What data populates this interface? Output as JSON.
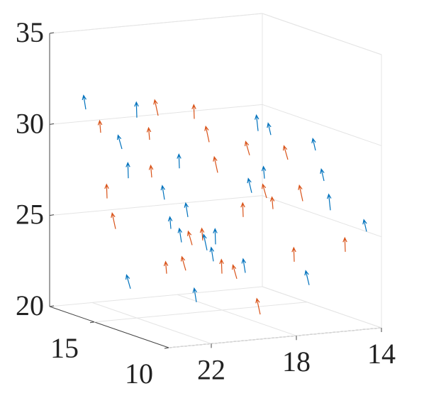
{
  "chart_data": {
    "type": "quiver3",
    "xlim": [
      10,
      18
    ],
    "ylim": [
      14,
      24
    ],
    "zlim": [
      20,
      35
    ],
    "xticks": [
      10,
      15
    ],
    "yticks": [
      14,
      18,
      22
    ],
    "zticks": [
      20,
      25,
      30,
      35
    ],
    "grid": true,
    "series": [
      {
        "color": "#0072bd",
        "x": [
          17,
          17,
          17,
          16,
          16,
          15,
          15,
          14,
          14,
          13,
          13,
          12,
          12,
          11,
          11,
          17,
          15,
          13,
          11,
          16,
          14,
          12,
          16,
          12
        ],
        "y": [
          23,
          21,
          19,
          22,
          18,
          20,
          16,
          23,
          17,
          21,
          15,
          19,
          15,
          22,
          16,
          17,
          22,
          18,
          14,
          20,
          19,
          16,
          15,
          22
        ],
        "z": [
          31,
          27,
          24,
          29,
          23,
          28,
          27,
          22,
          30,
          26,
          29,
          23,
          26,
          22,
          28,
          22,
          31,
          27,
          25,
          26,
          24,
          22,
          29,
          25
        ],
        "u": [
          0.1,
          0.1,
          0.2,
          0.1,
          0.0,
          0.1,
          0.2,
          0.1,
          0.0,
          0.1,
          0.2,
          0.1,
          0.0,
          0.1,
          0.2,
          0.1,
          0.1,
          0.0,
          0.2,
          0.1,
          0.1,
          0.0,
          0.2,
          0.1
        ],
        "v": [
          -0.2,
          -0.1,
          -0.2,
          -0.3,
          -0.2,
          -0.1,
          -0.2,
          -0.3,
          -0.1,
          -0.2,
          -0.3,
          -0.2,
          -0.1,
          -0.2,
          -0.3,
          -0.2,
          -0.1,
          -0.2,
          -0.3,
          -0.2,
          -0.1,
          -0.2,
          -0.3,
          -0.2
        ],
        "w": [
          1.0,
          1.1,
          0.9,
          1.0,
          1.1,
          1.0,
          0.9,
          1.0,
          1.1,
          1.0,
          0.9,
          1.0,
          1.1,
          1.0,
          0.9,
          1.0,
          1.1,
          1.0,
          0.9,
          1.0,
          1.1,
          1.0,
          0.9,
          1.0
        ]
      },
      {
        "color": "#d95319",
        "x": [
          17,
          16,
          16,
          15,
          15,
          14,
          14,
          13,
          13,
          12,
          12,
          11,
          11,
          17,
          16,
          15,
          14,
          13,
          12,
          11,
          15,
          13,
          17,
          11
        ],
        "y": [
          22,
          23,
          19,
          21,
          17,
          22,
          18,
          20,
          16,
          21,
          17,
          19,
          15,
          20,
          16,
          23,
          20,
          22,
          18,
          21,
          18,
          17,
          18,
          17
        ],
        "z": [
          26,
          30,
          22,
          31,
          25,
          28,
          22,
          30,
          23,
          25,
          29,
          21,
          24,
          29,
          28,
          25,
          31,
          23,
          27,
          29,
          22,
          26,
          23,
          27
        ],
        "u": [
          0.1,
          0.2,
          0.1,
          0.0,
          0.1,
          0.2,
          0.1,
          0.0,
          0.1,
          0.2,
          0.1,
          0.0,
          0.1,
          0.2,
          0.1,
          0.0,
          0.1,
          0.2,
          0.1,
          0.0,
          0.1,
          0.2,
          0.1,
          0.0
        ],
        "v": [
          -0.1,
          -0.2,
          -0.3,
          -0.2,
          -0.1,
          -0.2,
          -0.3,
          -0.2,
          -0.1,
          -0.2,
          -0.3,
          -0.2,
          -0.1,
          -0.2,
          -0.3,
          -0.2,
          -0.1,
          -0.2,
          -0.3,
          -0.2,
          -0.1,
          -0.2,
          -0.3,
          -0.2
        ],
        "w": [
          1.0,
          0.9,
          1.0,
          1.1,
          1.0,
          0.9,
          1.0,
          1.1,
          1.0,
          0.9,
          1.0,
          1.1,
          1.0,
          0.9,
          1.0,
          1.1,
          1.0,
          0.9,
          1.0,
          1.1,
          1.0,
          0.9,
          1.0,
          1.1
        ]
      }
    ]
  }
}
